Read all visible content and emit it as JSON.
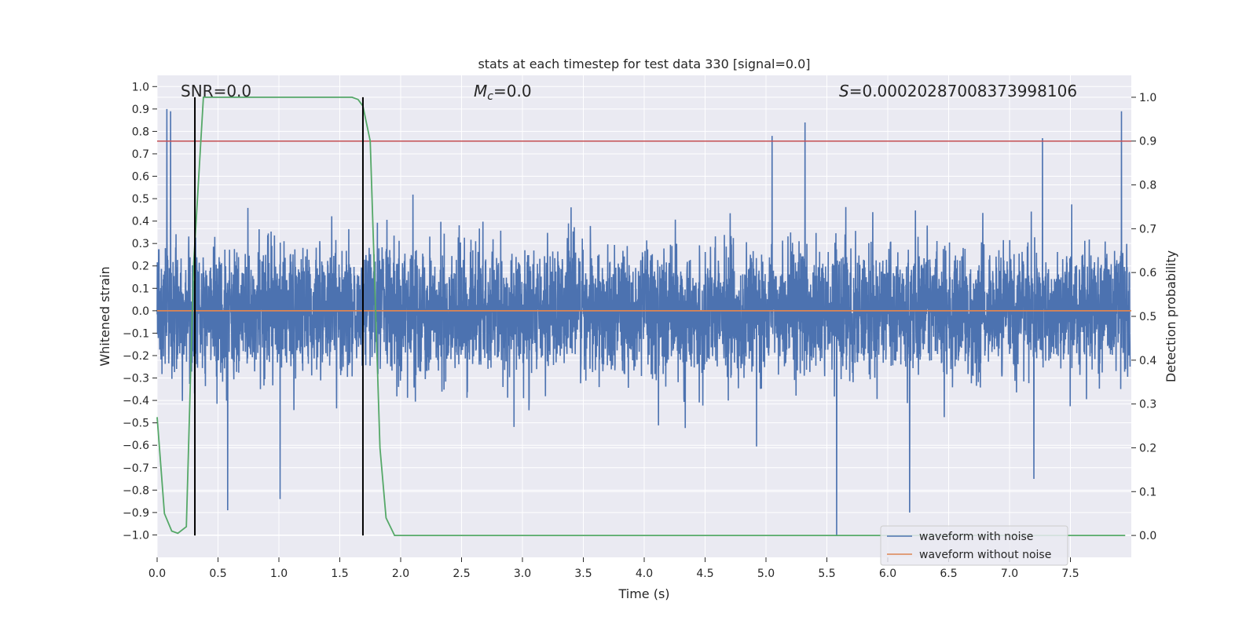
{
  "chart_data": {
    "type": "line",
    "title": "stats at each timestep for test data 330 [signal=0.0]",
    "xlabel": "Time (s)",
    "ylabel_left": "Whitened strain",
    "ylabel_right": "Detection probability",
    "xlim": [
      0.0,
      8.0
    ],
    "ylim_left": [
      -1.1,
      1.05
    ],
    "ylim_right": [
      -0.05,
      1.05
    ],
    "x_ticks": [
      0.0,
      0.5,
      1.0,
      1.5,
      2.0,
      2.5,
      3.0,
      3.5,
      4.0,
      4.5,
      5.0,
      5.5,
      6.0,
      6.5,
      7.0,
      7.5
    ],
    "x_tick_labels": [
      "0.0",
      "0.5",
      "1.0",
      "1.5",
      "2.0",
      "2.5",
      "3.0",
      "3.5",
      "4.0",
      "4.5",
      "5.0",
      "5.5",
      "6.0",
      "6.5",
      "7.0",
      "7.5"
    ],
    "y_left_ticks": [
      -1.0,
      -0.9,
      -0.8,
      -0.7,
      -0.6,
      -0.5,
      -0.4,
      -0.3,
      -0.2,
      -0.1,
      0.0,
      0.1,
      0.2,
      0.3,
      0.4,
      0.5,
      0.6,
      0.7,
      0.8,
      0.9,
      1.0
    ],
    "y_left_tick_labels": [
      "−1.0",
      "−0.9",
      "−0.8",
      "−0.7",
      "−0.6",
      "−0.5",
      "−0.4",
      "−0.3",
      "−0.2",
      "−0.1",
      "0.0",
      "0.1",
      "0.2",
      "0.3",
      "0.4",
      "0.5",
      "0.6",
      "0.7",
      "0.8",
      "0.9",
      "1.0"
    ],
    "y_right_ticks": [
      0.0,
      0.1,
      0.2,
      0.3,
      0.4,
      0.5,
      0.6,
      0.7,
      0.8,
      0.9,
      1.0
    ],
    "y_right_tick_labels": [
      "0.0",
      "0.1",
      "0.2",
      "0.3",
      "0.4",
      "0.5",
      "0.6",
      "0.7",
      "0.8",
      "0.9",
      "1.0"
    ],
    "annotations": {
      "snr_prefix": "SNR",
      "snr_value": "0.0",
      "mc_symbol": "M",
      "mc_subscript": "c",
      "mc_value": "0.0",
      "s_symbol": "S",
      "s_value": "0.00020287008373998106"
    },
    "series": [
      {
        "name": "waveform with noise",
        "axis": "left",
        "color": "#4c72b0",
        "noise_stats": {
          "x_start": 0.0,
          "x_end": 7.99,
          "typical_amplitude": 0.35,
          "peak_max": 0.9,
          "peak_min": -1.0
        },
        "spikes": [
          {
            "x": 0.08,
            "y": 0.9
          },
          {
            "x": 0.11,
            "y": 0.89
          },
          {
            "x": 0.58,
            "y": -0.89
          },
          {
            "x": 1.01,
            "y": -0.84
          },
          {
            "x": 5.05,
            "y": 0.78
          },
          {
            "x": 5.32,
            "y": 0.84
          },
          {
            "x": 5.58,
            "y": -1.0
          },
          {
            "x": 6.18,
            "y": -0.9
          },
          {
            "x": 7.2,
            "y": -0.75
          },
          {
            "x": 7.27,
            "y": 0.77
          },
          {
            "x": 7.92,
            "y": 0.89
          }
        ]
      },
      {
        "name": "waveform without noise",
        "axis": "left",
        "color": "#dd8452",
        "x": [
          0.0,
          8.0
        ],
        "y": [
          0.0,
          0.0
        ]
      },
      {
        "name": "",
        "axis": "right",
        "color": "#55a868",
        "x": [
          0.0,
          0.06,
          0.12,
          0.17,
          0.24,
          0.3,
          0.38,
          0.45,
          1.6,
          1.65,
          1.69,
          1.75,
          1.83,
          1.88,
          1.95,
          2.0,
          7.95
        ],
        "y": [
          0.27,
          0.05,
          0.01,
          0.005,
          0.02,
          0.62,
          1.0,
          1.0,
          1.0,
          0.995,
          0.98,
          0.9,
          0.2,
          0.04,
          0.0,
          0.0,
          0.0
        ]
      }
    ],
    "threshold_line": {
      "axis": "right",
      "y": 0.9,
      "color": "#c44e52"
    },
    "vertical_markers": {
      "color": "#000000",
      "x": [
        0.31,
        1.69
      ],
      "y_range_right": [
        0.0,
        1.0
      ]
    },
    "legend": {
      "placement": "lower-right",
      "entries": [
        {
          "label": "waveform with noise",
          "color": "#4c72b0"
        },
        {
          "label": "waveform without noise",
          "color": "#dd8452"
        }
      ]
    },
    "style": {
      "background": "#eaeaf2",
      "grid": true,
      "grid_color": "#ffffff"
    }
  }
}
